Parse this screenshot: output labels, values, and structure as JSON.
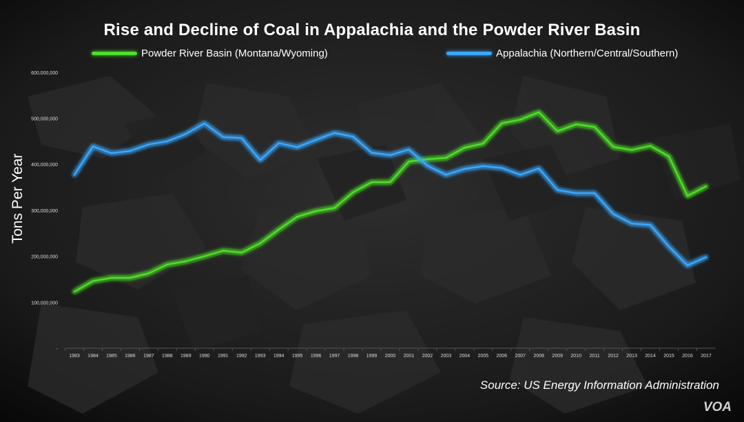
{
  "chart_data": {
    "type": "line",
    "title": "Rise and Decline of Coal in Appalachia and the Powder River Basin",
    "ylabel": "Tons Per Year",
    "xlabel": "",
    "ylim": [
      0,
      600000000
    ],
    "yticks": [
      {
        "value": 0,
        "label": "-"
      },
      {
        "value": 100000000,
        "label": "100,000,000"
      },
      {
        "value": 200000000,
        "label": "200,000,000"
      },
      {
        "value": 300000000,
        "label": "300,000,000"
      },
      {
        "value": 400000000,
        "label": "400,000,000"
      },
      {
        "value": 500000000,
        "label": "500,000,000"
      },
      {
        "value": 600000000,
        "label": "600,000,000"
      }
    ],
    "categories": [
      "1983",
      "1984",
      "1985",
      "1986",
      "1987",
      "1988",
      "1989",
      "1990",
      "1991",
      "1992",
      "1993",
      "1994",
      "1995",
      "1996",
      "1997",
      "1998",
      "1999",
      "2000",
      "2001",
      "2002",
      "2003",
      "2004",
      "2005",
      "2006",
      "2007",
      "2008",
      "2009",
      "2010",
      "2011",
      "2012",
      "2013",
      "2014",
      "2015",
      "2016",
      "2017"
    ],
    "series": [
      {
        "name": "Powder River Basin (Montana/Wyoming)",
        "color": "#4ee02c",
        "values": [
          123000000,
          146000000,
          153000000,
          153000000,
          163000000,
          182000000,
          189000000,
          200000000,
          212000000,
          208000000,
          228000000,
          258000000,
          286000000,
          298000000,
          305000000,
          339000000,
          361000000,
          361000000,
          406000000,
          411000000,
          414000000,
          436000000,
          445000000,
          489000000,
          497000000,
          513000000,
          472000000,
          487000000,
          481000000,
          438000000,
          431000000,
          440000000,
          417000000,
          331000000,
          352000000
        ]
      },
      {
        "name": "Appalachia (Northern/Central/Southern)",
        "color": "#3aa8ff",
        "values": [
          377000000,
          439000000,
          424000000,
          429000000,
          443000000,
          450000000,
          466000000,
          489000000,
          459000000,
          457000000,
          409000000,
          446000000,
          437000000,
          453000000,
          468000000,
          460000000,
          425000000,
          420000000,
          432000000,
          397000000,
          377000000,
          390000000,
          396000000,
          392000000,
          377000000,
          391000000,
          344000000,
          337000000,
          337000000,
          292000000,
          271000000,
          268000000,
          221000000,
          180000000,
          198000000
        ]
      }
    ],
    "grid": false,
    "legend_position": "top"
  },
  "source_text": "Source: US Energy Information Administration",
  "brand_text": "VOA"
}
